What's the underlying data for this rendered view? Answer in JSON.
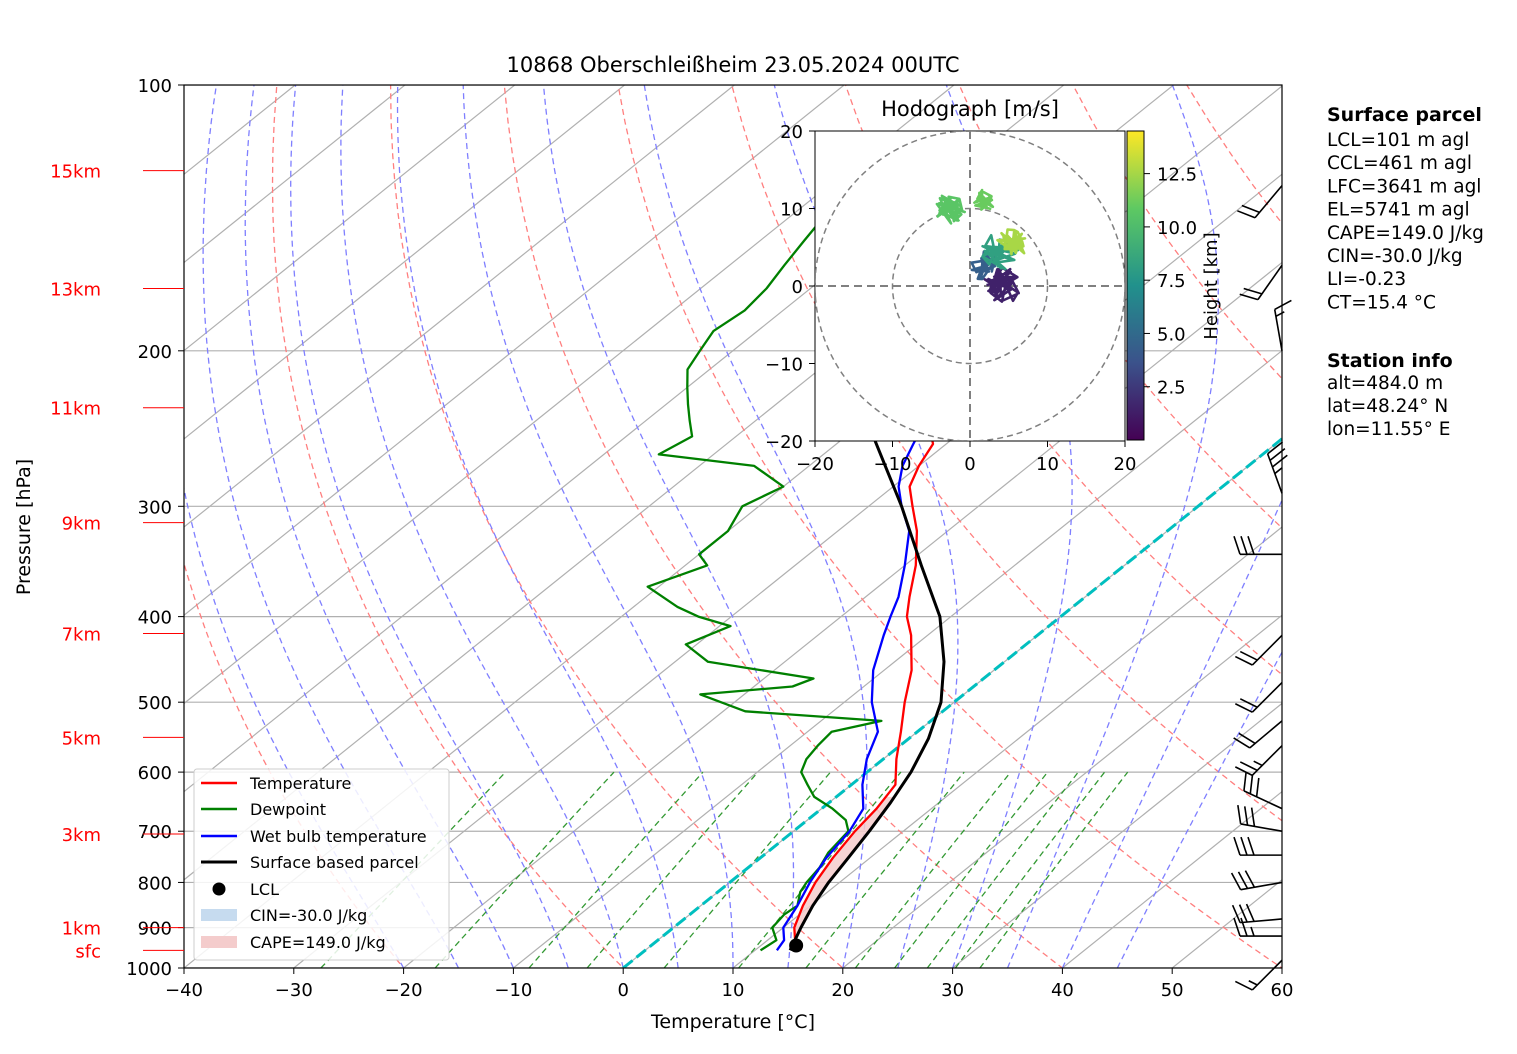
{
  "chart_data": {
    "type": "line",
    "title": "10868 Oberschleißheim 23.05.2024 00UTC",
    "xlabel": "Temperature [°C]",
    "ylabel": "Pressure [hPa]",
    "x_range": [
      -40,
      60
    ],
    "y_range": [
      1000,
      100
    ],
    "y_scale": "log",
    "skew": true,
    "grid": true,
    "legend_position": "lower-left",
    "x_ticks": [
      "−40",
      "−30",
      "−20",
      "−10",
      "0",
      "10",
      "20",
      "30",
      "40",
      "50",
      "60"
    ],
    "y_ticks": [
      "100",
      "200",
      "300",
      "400",
      "500",
      "600",
      "700",
      "800",
      "900",
      "1000"
    ],
    "height_ticks": [
      {
        "label": "sfc",
        "p": 955
      },
      {
        "label": "1km",
        "p": 900
      },
      {
        "label": "3km",
        "p": 705
      },
      {
        "label": "5km",
        "p": 548
      },
      {
        "label": "7km",
        "p": 418
      },
      {
        "label": "9km",
        "p": 313
      },
      {
        "label": "11km",
        "p": 232
      },
      {
        "label": "13km",
        "p": 170
      },
      {
        "label": "15km",
        "p": 125
      }
    ],
    "series": [
      {
        "name": "Temperature",
        "color": "#ff0000",
        "points": [
          [
            955,
            14.2
          ],
          [
            930,
            12.5
          ],
          [
            900,
            11.0
          ],
          [
            850,
            9.3
          ],
          [
            800,
            7.8
          ],
          [
            750,
            6.6
          ],
          [
            700,
            5.6
          ],
          [
            660,
            5.0
          ],
          [
            620,
            4.0
          ],
          [
            580,
            1.2
          ],
          [
            540,
            -1.5
          ],
          [
            500,
            -4.5
          ],
          [
            460,
            -7.5
          ],
          [
            420,
            -11.5
          ],
          [
            400,
            -14.0
          ],
          [
            380,
            -16.0
          ],
          [
            350,
            -19.0
          ],
          [
            320,
            -22.8
          ],
          [
            300,
            -26.0
          ],
          [
            285,
            -28.5
          ],
          [
            270,
            -30.0
          ],
          [
            255,
            -31.2
          ],
          [
            245,
            -33.2
          ],
          [
            230,
            -34.5
          ],
          [
            220,
            -35.2
          ],
          [
            212,
            -37.2
          ],
          [
            205,
            -38.8
          ],
          [
            200,
            -39.5
          ],
          [
            190,
            -40.0
          ],
          [
            180,
            -42.0
          ],
          [
            170,
            -43.5
          ],
          [
            160,
            -44.5
          ],
          [
            150,
            -45.5
          ],
          [
            140,
            -47.0
          ],
          [
            130,
            -48.0
          ],
          [
            125,
            -48.5
          ]
        ]
      },
      {
        "name": "Dewpoint",
        "color": "#008000",
        "points": [
          [
            955,
            10.5
          ],
          [
            930,
            10.8
          ],
          [
            900,
            9.0
          ],
          [
            870,
            8.6
          ],
          [
            850,
            8.8
          ],
          [
            820,
            7.5
          ],
          [
            800,
            7.0
          ],
          [
            770,
            6.5
          ],
          [
            740,
            5.6
          ],
          [
            700,
            5.0
          ],
          [
            680,
            3.5
          ],
          [
            660,
            1.0
          ],
          [
            640,
            -2.0
          ],
          [
            620,
            -4.0
          ],
          [
            600,
            -6.0
          ],
          [
            580,
            -7.0
          ],
          [
            560,
            -7.5
          ],
          [
            540,
            -7.8
          ],
          [
            525,
            -4.5
          ],
          [
            512,
            -18.0
          ],
          [
            490,
            -24.0
          ],
          [
            480,
            -16.5
          ],
          [
            470,
            -15.5
          ],
          [
            450,
            -27.0
          ],
          [
            430,
            -31.0
          ],
          [
            420,
            -30.0
          ],
          [
            410,
            -29.0
          ],
          [
            400,
            -33.0
          ],
          [
            390,
            -36.0
          ],
          [
            370,
            -41.0
          ],
          [
            350,
            -38.0
          ],
          [
            340,
            -40.0
          ],
          [
            320,
            -40.0
          ],
          [
            300,
            -41.5
          ],
          [
            285,
            -40.0
          ],
          [
            270,
            -45.0
          ],
          [
            262,
            -55.0
          ],
          [
            250,
            -54.0
          ],
          [
            240,
            -56.0
          ],
          [
            230,
            -58.0
          ],
          [
            220,
            -60.0
          ],
          [
            210,
            -62.0
          ],
          [
            200,
            -63.0
          ],
          [
            190,
            -64.0
          ],
          [
            180,
            -63.5
          ],
          [
            170,
            -64.0
          ],
          [
            160,
            -65.0
          ],
          [
            150,
            -66.0
          ],
          [
            140,
            -67.0
          ],
          [
            130,
            -68.0
          ],
          [
            125,
            -69.0
          ]
        ]
      },
      {
        "name": "Wet bulb temperature",
        "color": "#0000ff",
        "points": [
          [
            955,
            12.0
          ],
          [
            930,
            11.5
          ],
          [
            900,
            10.0
          ],
          [
            850,
            8.8
          ],
          [
            800,
            7.3
          ],
          [
            750,
            6.0
          ],
          [
            700,
            5.1
          ],
          [
            660,
            3.8
          ],
          [
            620,
            1.0
          ],
          [
            580,
            -1.5
          ],
          [
            540,
            -3.6
          ],
          [
            500,
            -7.5
          ],
          [
            460,
            -11.0
          ],
          [
            420,
            -14.0
          ],
          [
            400,
            -15.5
          ],
          [
            380,
            -17.0
          ],
          [
            350,
            -20.0
          ],
          [
            320,
            -23.5
          ],
          [
            300,
            -27.0
          ],
          [
            285,
            -29.5
          ],
          [
            270,
            -31.5
          ],
          [
            255,
            -33.0
          ],
          [
            245,
            -34.0
          ],
          [
            230,
            -35.5
          ],
          [
            220,
            -36.5
          ],
          [
            212,
            -38.0
          ],
          [
            205,
            -39.5
          ],
          [
            200,
            -40.0
          ],
          [
            190,
            -41.0
          ],
          [
            180,
            -42.5
          ],
          [
            170,
            -44.0
          ],
          [
            160,
            -45.0
          ],
          [
            150,
            -46.0
          ],
          [
            140,
            -47.5
          ],
          [
            130,
            -48.5
          ],
          [
            125,
            -49.0
          ]
        ]
      },
      {
        "name": "Surface based parcel",
        "color": "#000000",
        "points": [
          [
            955,
            13.2
          ],
          [
            900,
            11.6
          ],
          [
            850,
            10.2
          ],
          [
            800,
            9.0
          ],
          [
            750,
            8.0
          ],
          [
            700,
            6.9
          ],
          [
            650,
            5.6
          ],
          [
            600,
            4.0
          ],
          [
            550,
            1.8
          ],
          [
            500,
            -1.2
          ],
          [
            450,
            -5.5
          ],
          [
            400,
            -11.0
          ],
          [
            350,
            -18.5
          ],
          [
            300,
            -27.0
          ],
          [
            250,
            -37.5
          ],
          [
            200,
            -49.5
          ],
          [
            175,
            -56.5
          ],
          [
            150,
            -64.0
          ],
          [
            137,
            -68.0
          ],
          [
            125,
            -71.0
          ]
        ]
      }
    ],
    "lcl_point": {
      "p": 943,
      "t": 13.2
    },
    "legend": [
      "Temperature",
      "Dewpoint",
      "Wet bulb temperature",
      "Surface based parcel",
      "LCL",
      "CIN=-30.0 J/kg",
      "CAPE=149.0 J/kg"
    ],
    "wind_barbs": [
      {
        "p": 980,
        "dir": 225,
        "kt": 15
      },
      {
        "p": 920,
        "dir": 270,
        "kt": 25
      },
      {
        "p": 880,
        "dir": 265,
        "kt": 30
      },
      {
        "p": 800,
        "dir": 260,
        "kt": 30
      },
      {
        "p": 745,
        "dir": 270,
        "kt": 30
      },
      {
        "p": 700,
        "dir": 280,
        "kt": 30
      },
      {
        "p": 660,
        "dir": 295,
        "kt": 30
      },
      {
        "p": 560,
        "dir": 225,
        "kt": 25
      },
      {
        "p": 525,
        "dir": 230,
        "kt": 20
      },
      {
        "p": 475,
        "dir": 225,
        "kt": 20
      },
      {
        "p": 420,
        "dir": 225,
        "kt": 20
      },
      {
        "p": 340,
        "dir": 270,
        "kt": 30
      },
      {
        "p": 290,
        "dir": 340,
        "kt": 35
      },
      {
        "p": 200,
        "dir": 350,
        "kt": 15
      },
      {
        "p": 160,
        "dir": 215,
        "kt": 20
      },
      {
        "p": 130,
        "dir": 220,
        "kt": 20
      }
    ],
    "hodograph": {
      "title": "Hodograph [m/s]",
      "x_range": [
        -20,
        20
      ],
      "y_range": [
        -20,
        20
      ],
      "x_ticks": [
        "−20",
        "−10",
        "0",
        "10",
        "20"
      ],
      "y_ticks": [
        "20",
        "10",
        "0",
        "−10",
        "−20"
      ],
      "colorbar_label": "Height [km]",
      "colorbar_ticks": [
        "12.5",
        "10.0",
        "7.5",
        "5.0",
        "2.5"
      ],
      "clusters": [
        {
          "u": 4.0,
          "v": 0.0,
          "h": 1.5,
          "r": 2.5,
          "n": 40
        },
        {
          "u": 2.0,
          "v": 2.5,
          "h": 4.5,
          "r": 2.0,
          "n": 25
        },
        {
          "u": 4.0,
          "v": 4.5,
          "h": 8.5,
          "r": 2.5,
          "n": 30
        },
        {
          "u": 5.5,
          "v": 5.5,
          "h": 13.0,
          "r": 2.0,
          "n": 35
        },
        {
          "u": -2.5,
          "v": 10.0,
          "h": 11.0,
          "r": 2.0,
          "n": 40
        },
        {
          "u": 2.0,
          "v": 11.0,
          "h": 11.5,
          "r": 1.5,
          "n": 25
        }
      ]
    }
  },
  "side_panel": {
    "surface_title": "Surface parcel",
    "surface_lines": [
      "LCL=101 m agl",
      "CCL=461 m agl",
      "LFC=3641 m agl",
      "EL=5741 m agl",
      "CAPE=149.0 J/kg",
      "CIN=-30.0 J/kg",
      "LI=-0.23",
      "CT=15.4 °C"
    ],
    "station_title": "Station info",
    "station_lines": [
      "alt=484.0 m",
      "lat=48.24° N",
      "lon=11.55° E"
    ]
  },
  "colors": {
    "temperature": "#ff0000",
    "dewpoint": "#008000",
    "wetbulb": "#0000ff",
    "parcel": "#000000",
    "freezing_line": "#00bfbf",
    "dry_adiabat": "#ff7f7f",
    "moist_adiabat": "#7f7fff",
    "mixing_ratio": "#339933",
    "isotherm": "#b0b0b0",
    "cape_fill": "#f4cccc",
    "cin_fill": "#c6dbef",
    "height_label": "#ff0000"
  }
}
